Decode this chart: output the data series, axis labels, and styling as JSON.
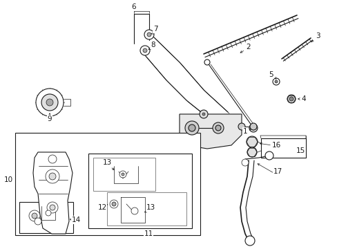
{
  "bg_color": "#ffffff",
  "line_color": "#1a1a1a",
  "fig_width": 4.89,
  "fig_height": 3.6,
  "dpi": 100,
  "fontsize": 7.5
}
